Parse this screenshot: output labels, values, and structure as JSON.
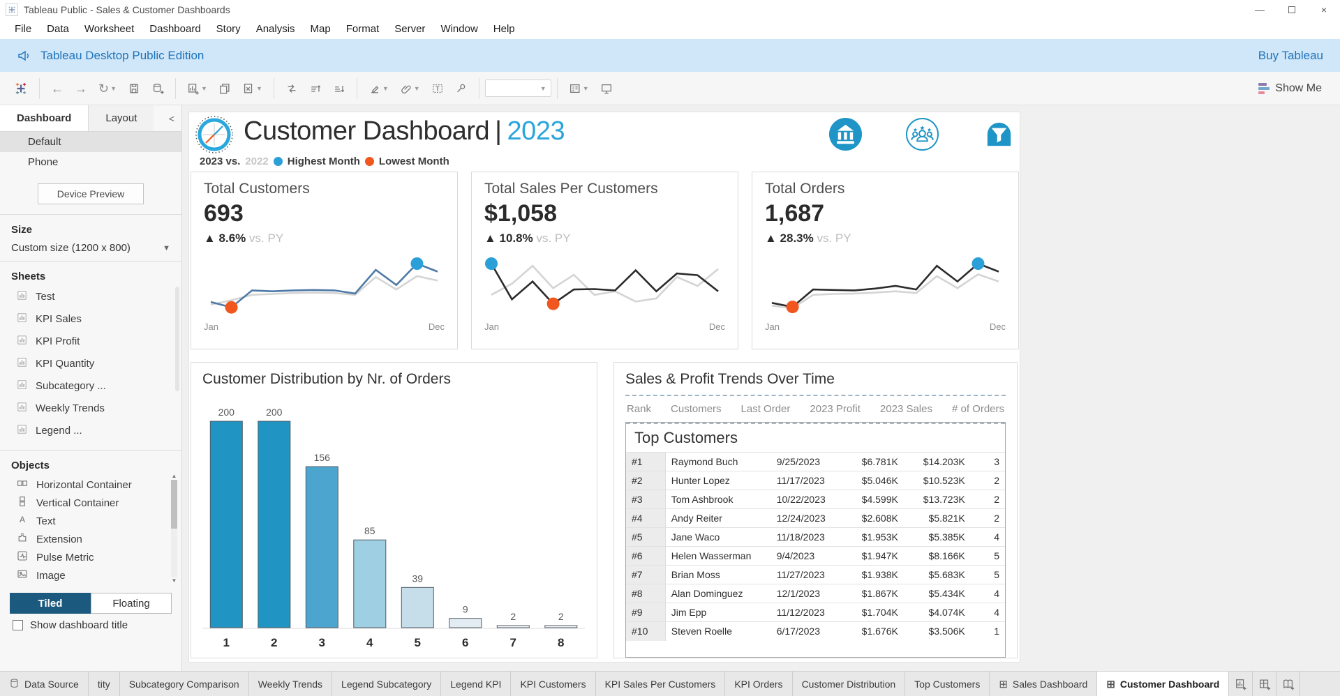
{
  "window": {
    "title": "Tableau Public - Sales & Customer Dashboards"
  },
  "menu": [
    "File",
    "Data",
    "Worksheet",
    "Dashboard",
    "Story",
    "Analysis",
    "Map",
    "Format",
    "Server",
    "Window",
    "Help"
  ],
  "banner": {
    "message": "Tableau Desktop Public Edition",
    "action": "Buy Tableau"
  },
  "toolbar": {
    "show_me": "Show Me",
    "icons": [
      {
        "name": "tableau-logo"
      },
      {
        "name": "undo"
      },
      {
        "name": "redo"
      },
      {
        "name": "replay",
        "dropdown": true
      },
      {
        "name": "save"
      },
      {
        "name": "new-data-source"
      },
      {
        "name": "new-worksheet",
        "dropdown": true
      },
      {
        "name": "duplicate"
      },
      {
        "name": "clear-sheet",
        "dropdown": true
      },
      {
        "name": "swap-rows-columns"
      },
      {
        "name": "sort-ascending"
      },
      {
        "name": "sort-descending"
      },
      {
        "name": "highlight",
        "dropdown": true
      },
      {
        "name": "format-links",
        "dropdown": true
      },
      {
        "name": "show-mark-labels"
      },
      {
        "name": "fix-axes"
      },
      {
        "name": "fit-selector",
        "dropdown": true
      },
      {
        "name": "show-cards",
        "dropdown": true
      },
      {
        "name": "presentation-mode"
      }
    ]
  },
  "sidebar": {
    "pane_tabs": [
      {
        "label": "Dashboard",
        "active": true
      },
      {
        "label": "Layout",
        "active": false
      }
    ],
    "collapse_icon": "<",
    "modes": [
      "Default",
      "Phone"
    ],
    "selected_mode": "Default",
    "device_preview": "Device Preview",
    "size": {
      "label": "Size",
      "value": "Custom size (1200 x 800)"
    },
    "sheets": {
      "label": "Sheets",
      "items": [
        "Test",
        "KPI Sales",
        "KPI Profit",
        "KPI Quantity",
        "Subcategory ...",
        "Weekly Trends",
        "Legend ..."
      ]
    },
    "objects": {
      "label": "Objects",
      "items": [
        {
          "name": "Horizontal Container",
          "icon": "horizontal-container"
        },
        {
          "name": "Vertical Container",
          "icon": "vertical-container"
        },
        {
          "name": "Text",
          "icon": "text"
        },
        {
          "name": "Extension",
          "icon": "extension"
        },
        {
          "name": "Pulse Metric",
          "icon": "pulse-metric"
        },
        {
          "name": "Image",
          "icon": "image"
        }
      ]
    },
    "layout_modes": [
      {
        "label": "Tiled",
        "active": true
      },
      {
        "label": "Floating",
        "active": false
      }
    ],
    "show_title_label": "Show dashboard title",
    "show_title_checked": false
  },
  "dashboard": {
    "title": "Customer Dashboard",
    "separator": "|",
    "year": "2023",
    "legend": {
      "current": "2023 vs.",
      "previous": "2022",
      "highest": "Highest Month",
      "lowest": "Lowest Month"
    },
    "header_icons": [
      "bank",
      "customers-group",
      "filter"
    ],
    "kpi_axis": {
      "start": "Jan",
      "end": "Dec"
    }
  },
  "colors": {
    "accent_blue": "#1e95c6",
    "year_blue": "#2aa5db",
    "highest_dot": "#2a9fd8",
    "lowest_dot": "#f0561d",
    "line_blue": "#4e79a7",
    "line_dark": "#2b2b2b",
    "line_py": "#d4d4d4",
    "bar_outline": "#4f5b63"
  },
  "chart_data": [
    {
      "type": "line",
      "title": "Total Customers",
      "kpi_value": "693",
      "kpi_delta_prefix": "▲",
      "kpi_delta": "8.6%",
      "kpi_delta_suffix": "vs. PY",
      "x": [
        "Jan",
        "Feb",
        "Mar",
        "Apr",
        "May",
        "Jun",
        "Jul",
        "Aug",
        "Sep",
        "Oct",
        "Nov",
        "Dec"
      ],
      "series": [
        {
          "name": "2023",
          "color": "#4e79a7",
          "values": [
            14,
            2,
            40,
            38,
            40,
            41,
            40,
            33,
            86,
            52,
            100,
            82
          ]
        },
        {
          "name": "2022 (PY)",
          "color": "#d4d4d4",
          "values": [
            8,
            18,
            30,
            32,
            34,
            35,
            34,
            30,
            70,
            42,
            72,
            62
          ]
        }
      ],
      "highest_month_index": 10,
      "lowest_month_index": 1,
      "x_axis_labels_shown": [
        "Jan",
        "Dec"
      ]
    },
    {
      "type": "line",
      "title": "Total Sales Per Customers",
      "kpi_value": "$1,058",
      "kpi_delta_prefix": "▲",
      "kpi_delta": "10.8%",
      "kpi_delta_suffix": "vs. PY",
      "x": [
        "Jan",
        "Feb",
        "Mar",
        "Apr",
        "May",
        "Jun",
        "Jul",
        "Aug",
        "Sep",
        "Oct",
        "Nov",
        "Dec"
      ],
      "series": [
        {
          "name": "2023",
          "color": "#2b2b2b",
          "values": [
            100,
            20,
            60,
            10,
            42,
            43,
            40,
            85,
            38,
            78,
            74,
            38
          ]
        },
        {
          "name": "2022 (PY)",
          "color": "#d4d4d4",
          "values": [
            30,
            55,
            95,
            45,
            75,
            30,
            38,
            15,
            22,
            70,
            50,
            88
          ]
        }
      ],
      "highest_month_index": 0,
      "lowest_month_index": 3,
      "x_axis_labels_shown": [
        "Jan",
        "Dec"
      ]
    },
    {
      "type": "line",
      "title": "Total Orders",
      "kpi_value": "1,687",
      "kpi_delta_prefix": "▲",
      "kpi_delta": "28.3%",
      "kpi_delta_suffix": "vs. PY",
      "x": [
        "Jan",
        "Feb",
        "Mar",
        "Apr",
        "May",
        "Jun",
        "Jul",
        "Aug",
        "Sep",
        "Oct",
        "Nov",
        "Dec"
      ],
      "series": [
        {
          "name": "2023",
          "color": "#2b2b2b",
          "values": [
            12,
            3,
            42,
            41,
            40,
            44,
            50,
            42,
            95,
            60,
            100,
            82
          ]
        },
        {
          "name": "2022 (PY)",
          "color": "#d4d4d4",
          "values": [
            6,
            0,
            30,
            32,
            33,
            35,
            38,
            34,
            72,
            45,
            76,
            60
          ]
        }
      ],
      "highest_month_index": 10,
      "lowest_month_index": 1,
      "x_axis_labels_shown": [
        "Jan",
        "Dec"
      ]
    },
    {
      "type": "bar",
      "title": "Customer Distribution by Nr. of Orders",
      "categories": [
        "1",
        "2",
        "3",
        "4",
        "5",
        "6",
        "7",
        "8"
      ],
      "values": [
        200,
        200,
        156,
        85,
        39,
        9,
        2,
        2
      ],
      "bar_colors": [
        "#2095c3",
        "#2095c3",
        "#4ba5ce",
        "#9ecfe2",
        "#c6deea",
        "#e2ecf2",
        "#f4f7f9",
        "#f4f7f9"
      ],
      "data_labels": true,
      "ylim": [
        0,
        200
      ],
      "grid": false
    },
    {
      "type": "table",
      "section_title": "Sales & Profit Trends Over Time",
      "title": "Top Customers",
      "columns": [
        "Rank",
        "Customers",
        "Last Order",
        "2023 Profit",
        "2023 Sales",
        "# of Orders"
      ],
      "rows": [
        [
          "#1",
          "Raymond Buch",
          "9/25/2023",
          "$6.781K",
          "$14.203K",
          "3"
        ],
        [
          "#2",
          "Hunter Lopez",
          "11/17/2023",
          "$5.046K",
          "$10.523K",
          "2"
        ],
        [
          "#3",
          "Tom Ashbrook",
          "10/22/2023",
          "$4.599K",
          "$13.723K",
          "2"
        ],
        [
          "#4",
          "Andy Reiter",
          "12/24/2023",
          "$2.608K",
          "$5.821K",
          "2"
        ],
        [
          "#5",
          "Jane Waco",
          "11/18/2023",
          "$1.953K",
          "$5.385K",
          "4"
        ],
        [
          "#6",
          "Helen Wasserman",
          "9/4/2023",
          "$1.947K",
          "$8.166K",
          "5"
        ],
        [
          "#7",
          "Brian Moss",
          "11/27/2023",
          "$1.938K",
          "$5.683K",
          "5"
        ],
        [
          "#8",
          "Alan Dominguez",
          "12/1/2023",
          "$1.867K",
          "$5.434K",
          "4"
        ],
        [
          "#9",
          "Jim Epp",
          "11/12/2023",
          "$1.704K",
          "$4.074K",
          "4"
        ],
        [
          "#10",
          "Steven Roelle",
          "6/17/2023",
          "$1.676K",
          "$3.506K",
          "1"
        ]
      ]
    }
  ],
  "sheet_tabs": {
    "tabs": [
      {
        "label": "Data Source",
        "icon": "database"
      },
      {
        "label": "tity"
      },
      {
        "label": "Subcategory Comparison"
      },
      {
        "label": "Weekly Trends"
      },
      {
        "label": "Legend Subcategory"
      },
      {
        "label": "Legend KPI"
      },
      {
        "label": "KPI Customers"
      },
      {
        "label": "KPI Sales Per Customers"
      },
      {
        "label": "KPI Orders"
      },
      {
        "label": "Customer Distribution"
      },
      {
        "label": "Top Customers"
      },
      {
        "label": "Sales Dashboard",
        "icon": "dashboard-grid"
      },
      {
        "label": "Customer Dashboard",
        "icon": "dashboard-grid",
        "active": true
      }
    ],
    "new_buttons": [
      "new-worksheet",
      "new-dashboard",
      "new-story"
    ]
  }
}
